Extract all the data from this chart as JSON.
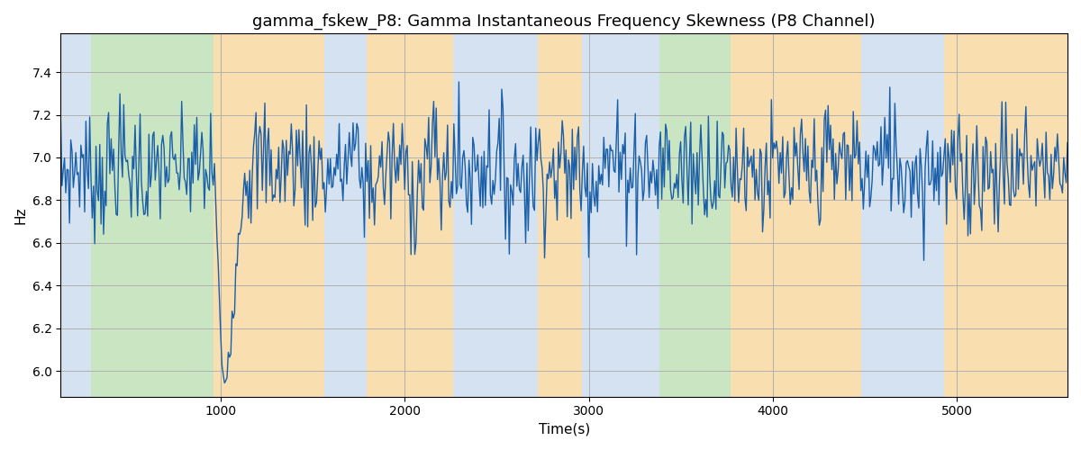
{
  "title": "gamma_fskew_P8: Gamma Instantaneous Frequency Skewness (P8 Channel)",
  "xlabel": "Time(s)",
  "ylabel": "Hz",
  "xlim": [
    130,
    5600
  ],
  "ylim": [
    5.88,
    7.58
  ],
  "line_color": "#1a5fa8",
  "line_width": 1.0,
  "bg_color": "#ffffff",
  "grid_color": "#b0b0b0",
  "title_fontsize": 13,
  "label_fontsize": 11,
  "tick_fontsize": 10,
  "xticks": [
    1000,
    2000,
    3000,
    4000,
    5000
  ],
  "yticks": [
    6.0,
    6.2,
    6.4,
    6.6,
    6.8,
    7.0,
    7.2,
    7.4
  ],
  "bands": [
    {
      "xmin": 130,
      "xmax": 295,
      "color": "#b8d0e8",
      "alpha": 0.6
    },
    {
      "xmin": 295,
      "xmax": 960,
      "color": "#a0d090",
      "alpha": 0.55
    },
    {
      "xmin": 960,
      "xmax": 1560,
      "color": "#f5c87a",
      "alpha": 0.6
    },
    {
      "xmin": 1560,
      "xmax": 1790,
      "color": "#b8d0e8",
      "alpha": 0.6
    },
    {
      "xmin": 1790,
      "xmax": 2260,
      "color": "#f5c87a",
      "alpha": 0.6
    },
    {
      "xmin": 2260,
      "xmax": 2720,
      "color": "#b8d0e8",
      "alpha": 0.6
    },
    {
      "xmin": 2720,
      "xmax": 2960,
      "color": "#f5c87a",
      "alpha": 0.6
    },
    {
      "xmin": 2960,
      "xmax": 3170,
      "color": "#b8d0e8",
      "alpha": 0.6
    },
    {
      "xmin": 3170,
      "xmax": 3385,
      "color": "#b8d0e8",
      "alpha": 0.6
    },
    {
      "xmin": 3385,
      "xmax": 3770,
      "color": "#a0d090",
      "alpha": 0.55
    },
    {
      "xmin": 3770,
      "xmax": 4060,
      "color": "#f5c87a",
      "alpha": 0.6
    },
    {
      "xmin": 4060,
      "xmax": 4480,
      "color": "#f5c87a",
      "alpha": 0.6
    },
    {
      "xmin": 4480,
      "xmax": 4690,
      "color": "#b8d0e8",
      "alpha": 0.6
    },
    {
      "xmin": 4690,
      "xmax": 4930,
      "color": "#b8d0e8",
      "alpha": 0.6
    },
    {
      "xmin": 4930,
      "xmax": 5600,
      "color": "#f5c87a",
      "alpha": 0.6
    }
  ],
  "seed": 42,
  "n_points": 800
}
